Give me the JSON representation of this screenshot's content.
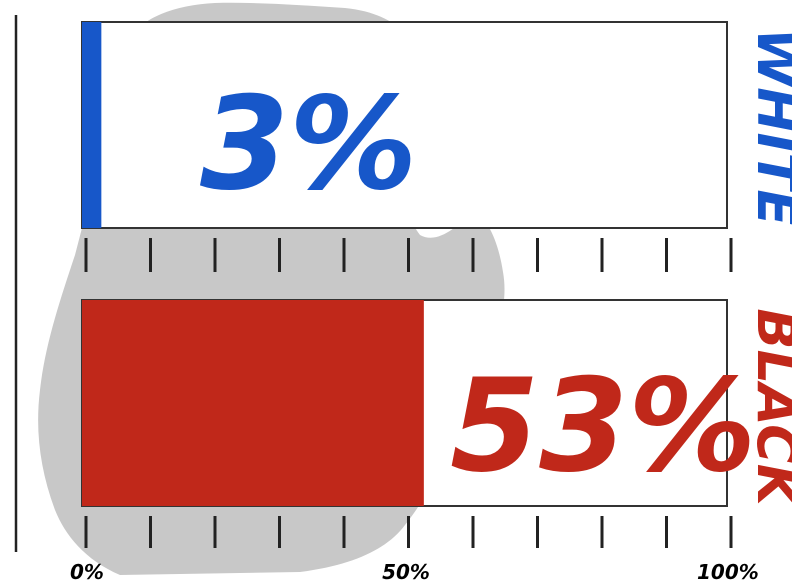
{
  "chart_data": {
    "type": "bar",
    "orientation": "horizontal",
    "categories": [
      "WHITE",
      "BLACK"
    ],
    "values": [
      3,
      53
    ],
    "value_labels": [
      "3%",
      "53%"
    ],
    "colors": [
      "#1757c9",
      "#c0281a"
    ],
    "xlim": [
      0,
      100
    ],
    "x_tick_labels": [
      "0%",
      "50%",
      "100%"
    ],
    "x_tick_values": [
      0,
      50,
      100
    ],
    "minor_tick_count": 10,
    "background_shape": "michigan-map",
    "background_color": "#c8c8c8",
    "grid": false,
    "legend": "none"
  }
}
